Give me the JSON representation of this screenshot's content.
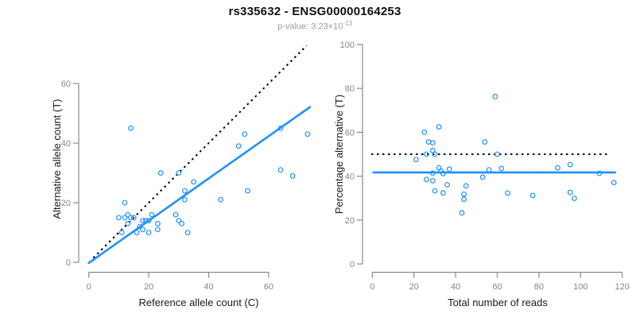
{
  "header": {
    "title": "rs335632 - ENSG00000164253",
    "pvalue_text": "p-value: 3.23×10",
    "pvalue_exponent": "-13"
  },
  "colors": {
    "blue": "#1E90FF",
    "black": "#000000",
    "axis_gray": "#8a8a8a",
    "tick_label_gray": "#878787"
  },
  "chart_data": [
    {
      "type": "scatter",
      "panel": "left",
      "xlabel": "Reference allele count (C)",
      "ylabel": "Alternative allele count (T)",
      "xlim": [
        0,
        74
      ],
      "ylim": [
        0,
        73
      ],
      "xticks": [
        0,
        20,
        40,
        60
      ],
      "yticks": [
        0,
        20,
        40,
        60
      ],
      "grid": false,
      "marker": "open-circle",
      "points": [
        [
          14,
          45
        ],
        [
          12,
          20
        ],
        [
          10,
          15
        ],
        [
          12,
          15
        ],
        [
          24,
          30
        ],
        [
          13,
          16
        ],
        [
          14,
          15
        ],
        [
          13,
          13
        ],
        [
          15,
          15
        ],
        [
          30,
          30
        ],
        [
          11,
          10
        ],
        [
          21,
          16
        ],
        [
          50,
          39
        ],
        [
          52,
          43
        ],
        [
          35,
          27
        ],
        [
          18,
          14
        ],
        [
          32,
          24
        ],
        [
          20,
          14
        ],
        [
          19,
          14
        ],
        [
          17,
          12
        ],
        [
          64,
          45
        ],
        [
          32,
          21
        ],
        [
          16,
          10
        ],
        [
          18,
          11
        ],
        [
          73,
          43
        ],
        [
          23,
          13
        ],
        [
          29,
          16
        ],
        [
          20,
          10
        ],
        [
          64,
          31
        ],
        [
          23,
          11
        ],
        [
          44,
          21
        ],
        [
          30,
          14
        ],
        [
          53,
          24
        ],
        [
          68,
          29
        ],
        [
          31,
          13
        ],
        [
          33,
          10
        ]
      ],
      "lines": [
        {
          "name": "identity-line",
          "style": "dotted",
          "color": "black",
          "points": [
            [
              1.5,
              1.5
            ],
            [
              72.7,
              72.7
            ]
          ]
        },
        {
          "name": "fit-line",
          "style": "solid",
          "color": "blue",
          "points": [
            [
              0,
              -0.2
            ],
            [
              73.8,
              52.1
            ]
          ]
        }
      ]
    },
    {
      "type": "scatter",
      "panel": "right",
      "xlabel": "Total number of reads",
      "ylabel": "Percentage alternative (T)",
      "xlim": [
        0,
        121
      ],
      "ylim": [
        0,
        100
      ],
      "xticks": [
        0,
        20,
        40,
        60,
        80,
        100,
        120
      ],
      "yticks": [
        0,
        20,
        40,
        60,
        80,
        100
      ],
      "grid": false,
      "marker": "open-circle",
      "points": [
        [
          59,
          76.3
        ],
        [
          32,
          62.5
        ],
        [
          25,
          60.0
        ],
        [
          27,
          55.6
        ],
        [
          54,
          55.6
        ],
        [
          29,
          55.2
        ],
        [
          29,
          51.7
        ],
        [
          26,
          50.0
        ],
        [
          30,
          50.0
        ],
        [
          60,
          50.0
        ],
        [
          21,
          47.6
        ],
        [
          37,
          43.2
        ],
        [
          89,
          43.8
        ],
        [
          95,
          45.3
        ],
        [
          62,
          43.5
        ],
        [
          32,
          43.8
        ],
        [
          56,
          42.9
        ],
        [
          34,
          41.2
        ],
        [
          33,
          42.4
        ],
        [
          29,
          41.4
        ],
        [
          109,
          41.3
        ],
        [
          53,
          39.6
        ],
        [
          26,
          38.5
        ],
        [
          29,
          37.9
        ],
        [
          116,
          37.1
        ],
        [
          36,
          36.1
        ],
        [
          45,
          35.6
        ],
        [
          30,
          33.3
        ],
        [
          95,
          32.6
        ],
        [
          34,
          32.4
        ],
        [
          65,
          32.3
        ],
        [
          44,
          31.8
        ],
        [
          77,
          31.2
        ],
        [
          97,
          29.9
        ],
        [
          44,
          29.5
        ],
        [
          43,
          23.3
        ]
      ],
      "lines": [
        {
          "name": "fifty-percent-line",
          "style": "dotted",
          "color": "black",
          "points": [
            [
              -0.5,
              50
            ],
            [
              113.5,
              50
            ]
          ]
        },
        {
          "name": "mean-percentage-line",
          "style": "solid",
          "color": "blue",
          "points": [
            [
              0.5,
              41.7
            ],
            [
              116.6,
              41.7
            ]
          ]
        }
      ]
    }
  ]
}
